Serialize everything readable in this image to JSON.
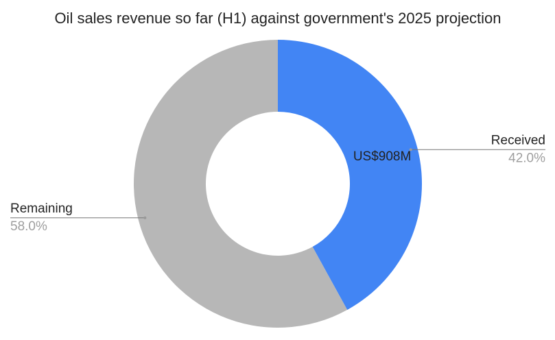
{
  "chart_data": {
    "type": "donut",
    "title": "Oil sales revenue so far (H1) against government's 2025 projection",
    "categories": [
      "Received",
      "Remaining"
    ],
    "values": [
      42.0,
      58.0
    ],
    "value_labels": [
      "42.0%",
      "58.0%"
    ],
    "colors": [
      "#4285f4",
      "#b7b7b7"
    ],
    "annotation": "US$908M"
  }
}
